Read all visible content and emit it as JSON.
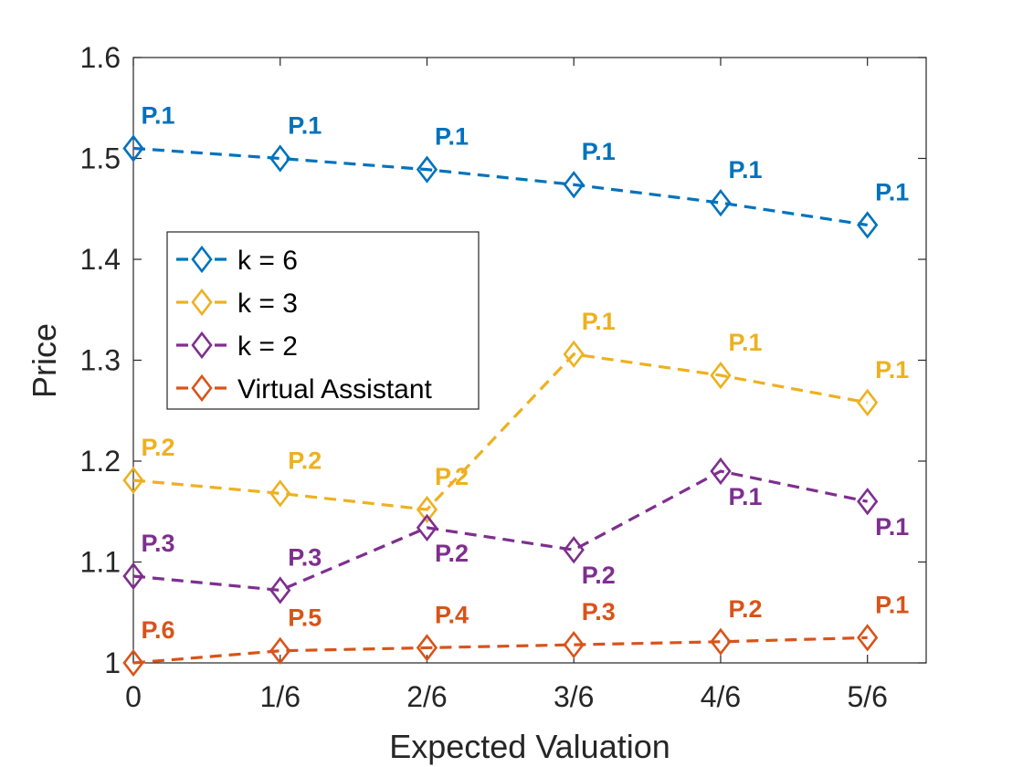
{
  "chart_data": {
    "type": "line",
    "title": "",
    "xlabel": "Expected Valuation",
    "ylabel": "Price",
    "x": [
      0,
      0.16667,
      0.33333,
      0.5,
      0.66667,
      0.83333
    ],
    "x_tick_labels": [
      "0",
      "1/6",
      "2/6",
      "3/6",
      "4/6",
      "5/6"
    ],
    "y_tick_labels": [
      "1",
      "1.1",
      "1.2",
      "1.3",
      "1.4",
      "1.5",
      "1.6"
    ],
    "y_ticks": [
      1.0,
      1.1,
      1.2,
      1.3,
      1.4,
      1.5,
      1.6
    ],
    "xlim": [
      0,
      0.9
    ],
    "ylim": [
      1.0,
      1.6
    ],
    "grid": false,
    "legend_position": "middle-left",
    "series": [
      {
        "name": "k = 6",
        "color": "#0072BD",
        "marker": "diamond",
        "line_style": "dashed",
        "values": [
          1.51,
          1.5,
          1.489,
          1.474,
          1.456,
          1.434
        ],
        "point_labels": [
          "P.1",
          "P.1",
          "P.1",
          "P.1",
          "P.1",
          "P.1"
        ],
        "label_side": [
          "above",
          "above",
          "above",
          "above",
          "above",
          "above"
        ]
      },
      {
        "name": "k = 3",
        "color": "#EDB120",
        "marker": "diamond",
        "line_style": "dashed",
        "values": [
          1.181,
          1.168,
          1.152,
          1.306,
          1.285,
          1.258
        ],
        "point_labels": [
          "P.2",
          "P.2",
          "P.2",
          "P.1",
          "P.1",
          "P.1"
        ],
        "label_side": [
          "above",
          "above",
          "above",
          "above",
          "above",
          "above"
        ]
      },
      {
        "name": "k = 2",
        "color": "#7E2F8E",
        "marker": "diamond",
        "line_style": "dashed",
        "values": [
          1.086,
          1.072,
          1.134,
          1.112,
          1.19,
          1.16
        ],
        "point_labels": [
          "P.3",
          "P.3",
          "P.2",
          "P.2",
          "P.1",
          "P.1"
        ],
        "label_side": [
          "above",
          "above",
          "below",
          "below",
          "below",
          "below"
        ]
      },
      {
        "name": "Virtual Assistant",
        "color": "#D95319",
        "marker": "diamond",
        "line_style": "dashed",
        "values": [
          1.0,
          1.012,
          1.015,
          1.018,
          1.021,
          1.025
        ],
        "point_labels": [
          "P.6",
          "P.5",
          "P.4",
          "P.3",
          "P.2",
          "P.1"
        ],
        "label_side": [
          "above",
          "above",
          "above",
          "above",
          "above",
          "above"
        ]
      }
    ]
  }
}
